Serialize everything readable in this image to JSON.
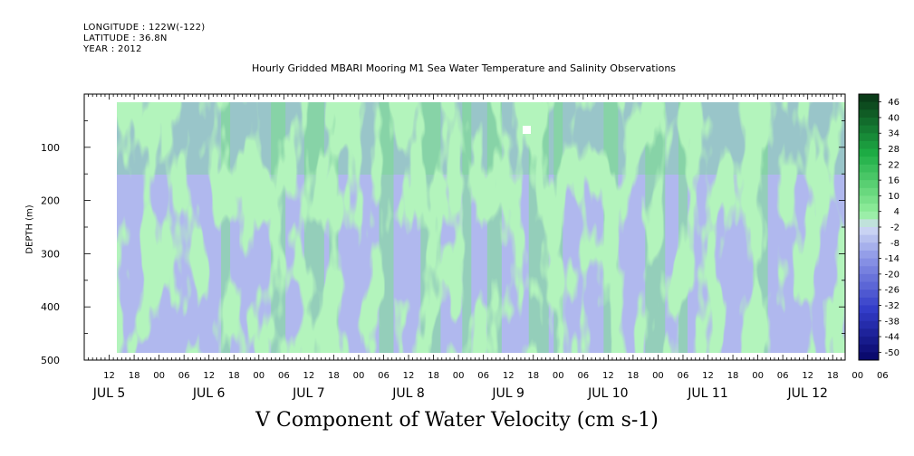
{
  "meta": {
    "longitude": "LONGITUDE : 122W(-122)",
    "latitude": "LATITUDE : 36.8N",
    "year": "YEAR : 2012"
  },
  "chart_data": {
    "type": "heatmap",
    "title": "Hourly Gridded MBARI Mooring M1 Sea Water Temperature and Salinity Observations",
    "xlabel": "V Component of Water Velocity (cm s-1)",
    "ylabel": "DEPTH (m)",
    "y_range": [
      0,
      500
    ],
    "y_reversed": true,
    "y_ticks": [
      100,
      200,
      300,
      400,
      500
    ],
    "x_hour_range": [
      6,
      189
    ],
    "hour_ticks": [
      "12",
      "18",
      "00",
      "06",
      "12",
      "18",
      "00",
      "06",
      "12",
      "18",
      "00",
      "06",
      "12",
      "18",
      "00",
      "06",
      "12",
      "18",
      "00",
      "06",
      "12",
      "18",
      "00",
      "06",
      "12",
      "18",
      "00",
      "06",
      "12",
      "18",
      "00",
      "06"
    ],
    "day_labels": [
      "JUL 5",
      "JUL 6",
      "JUL 7",
      "JUL 8",
      "JUL 9",
      "JUL 10",
      "JUL 11",
      "JUL 12"
    ],
    "colorbar_levels": [
      "46",
      "40",
      "34",
      "28",
      "22",
      "16",
      "10",
      "4",
      "-2",
      "-8",
      "-14",
      "-20",
      "-26",
      "-32",
      "-38",
      "-44",
      "-50"
    ],
    "colorbar_range": [
      -50,
      49
    ],
    "grid": false
  }
}
